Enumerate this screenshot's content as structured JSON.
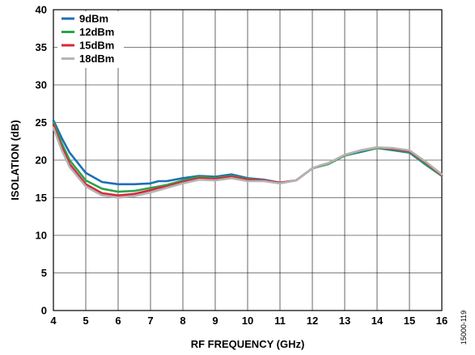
{
  "figure_id": "15000-119",
  "chart_data": {
    "type": "line",
    "xlabel": "RF FREQUENCY (GHz)",
    "ylabel": "ISOLATION (dB)",
    "xlim": [
      4,
      16
    ],
    "ylim": [
      0,
      40
    ],
    "xticks": [
      4,
      5,
      6,
      7,
      8,
      9,
      10,
      11,
      12,
      13,
      14,
      15,
      16
    ],
    "yticks": [
      0,
      5,
      10,
      15,
      20,
      25,
      30,
      35,
      40
    ],
    "grid": true,
    "legend_position": "top-left",
    "x": [
      4.0,
      4.25,
      4.5,
      5.0,
      5.5,
      6.0,
      6.5,
      7.0,
      7.25,
      7.5,
      8.0,
      8.5,
      9.0,
      9.5,
      10.0,
      10.5,
      11.0,
      11.5,
      12.0,
      12.25,
      12.5,
      13.0,
      13.5,
      14.0,
      14.5,
      15.0,
      15.5,
      16.0
    ],
    "series": [
      {
        "name": "9dBm",
        "color": "#1f6fb4",
        "values": [
          25.3,
          23.0,
          21.0,
          18.3,
          17.1,
          16.8,
          16.8,
          16.9,
          17.2,
          17.2,
          17.6,
          17.9,
          17.8,
          18.1,
          17.6,
          17.4,
          17.0,
          17.3,
          18.9,
          19.2,
          19.5,
          20.6,
          21.1,
          21.6,
          21.3,
          21.0,
          19.4,
          17.9
        ]
      },
      {
        "name": "12dBm",
        "color": "#2aa34a",
        "values": [
          25.0,
          22.3,
          20.0,
          17.3,
          16.2,
          15.8,
          15.9,
          16.3,
          16.5,
          16.7,
          17.3,
          17.8,
          17.6,
          17.9,
          17.5,
          17.3,
          17.0,
          17.3,
          18.9,
          19.2,
          19.5,
          20.6,
          21.2,
          21.6,
          21.4,
          21.1,
          19.5,
          17.9
        ]
      },
      {
        "name": "15dBm",
        "color": "#d8283a",
        "values": [
          24.7,
          21.8,
          19.5,
          16.8,
          15.6,
          15.3,
          15.5,
          16.0,
          16.3,
          16.5,
          17.1,
          17.6,
          17.5,
          17.8,
          17.4,
          17.3,
          17.0,
          17.3,
          18.9,
          19.3,
          19.6,
          20.7,
          21.3,
          21.7,
          21.5,
          21.2,
          19.7,
          18.0
        ]
      },
      {
        "name": "18dBm",
        "color": "#b4b4b4",
        "values": [
          24.3,
          21.4,
          19.1,
          16.5,
          15.3,
          15.0,
          15.2,
          15.7,
          16.0,
          16.3,
          16.9,
          17.4,
          17.3,
          17.6,
          17.2,
          17.2,
          16.9,
          17.3,
          18.9,
          19.3,
          19.6,
          20.7,
          21.3,
          21.7,
          21.6,
          21.3,
          19.8,
          18.1
        ]
      }
    ]
  }
}
